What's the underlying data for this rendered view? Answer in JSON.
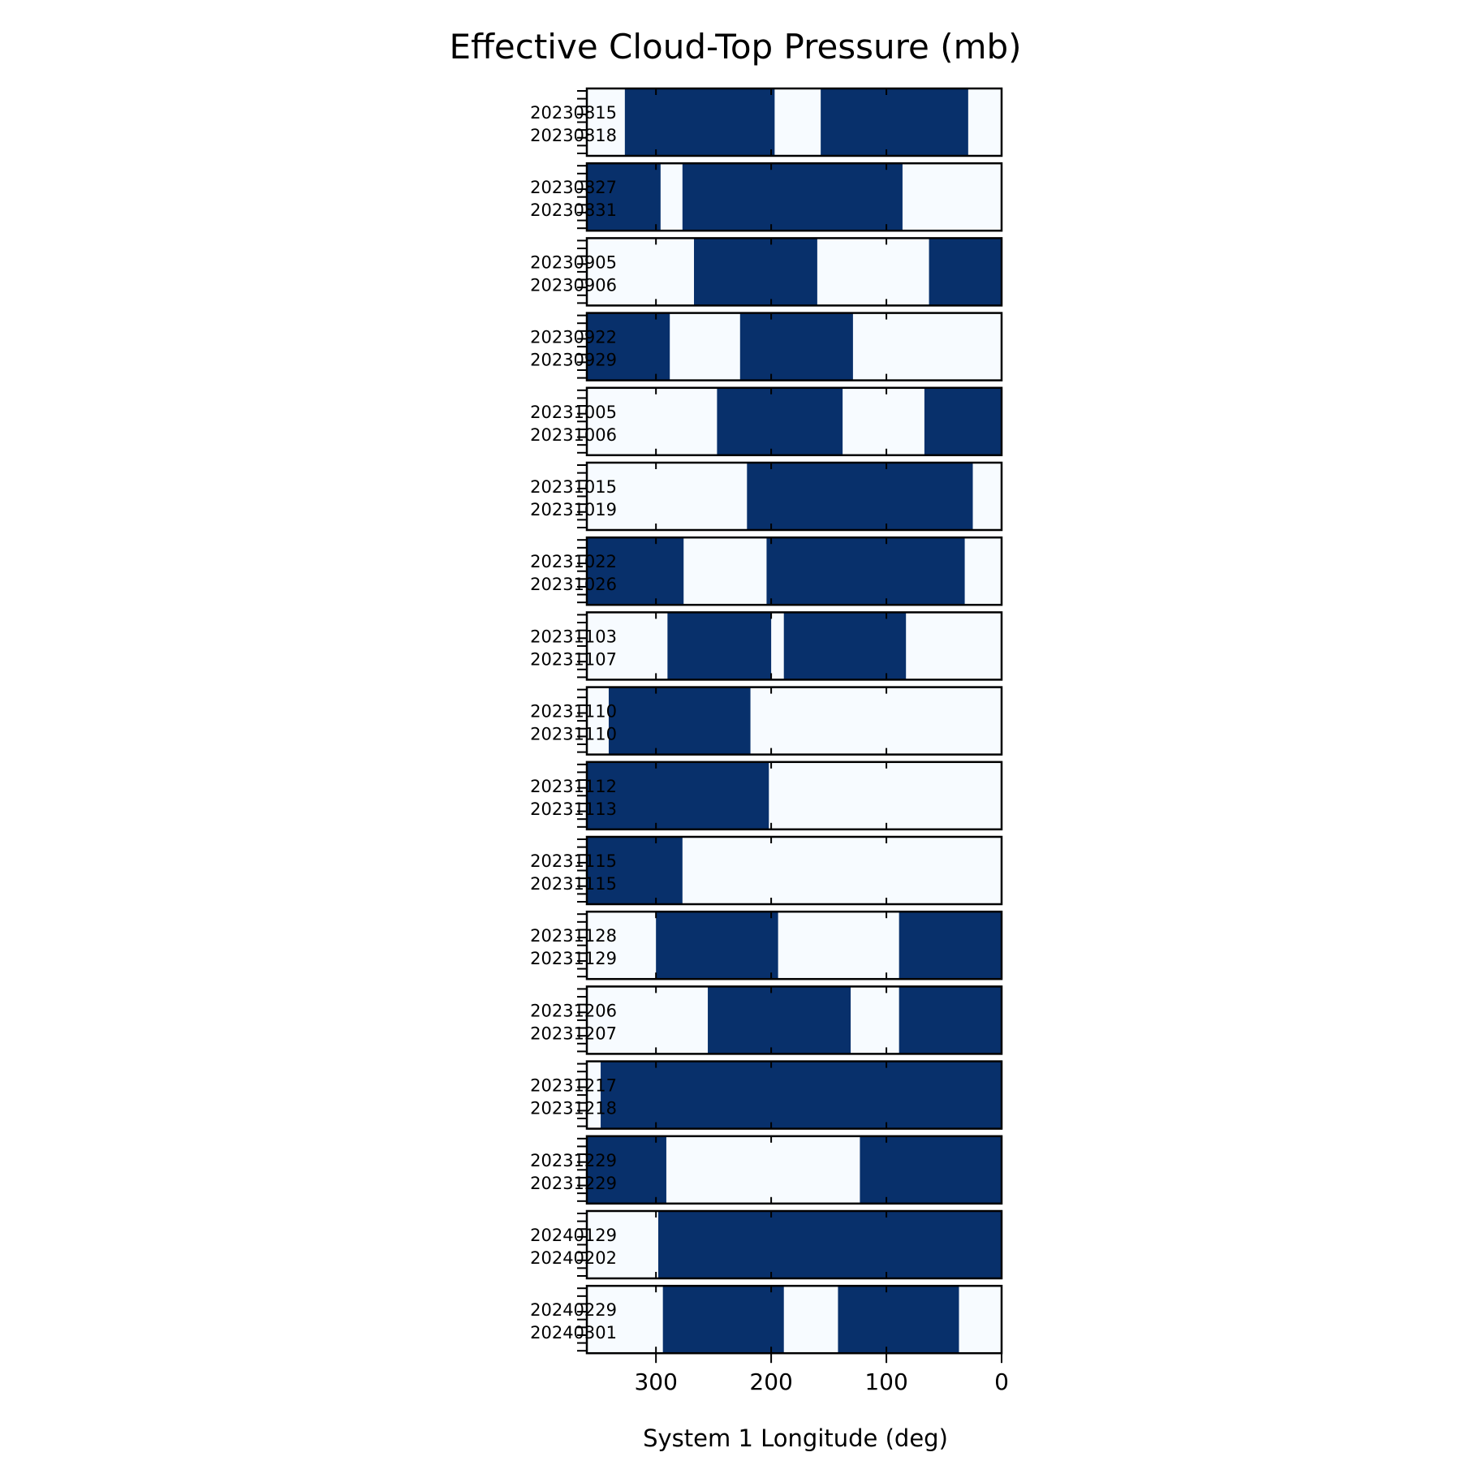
{
  "chart_data": {
    "type": "heatmap",
    "title": "Effective Cloud-Top Pressure (mb)",
    "xlabel": "System 1 Longitude (deg)",
    "ylabel": "",
    "xlim": [
      360,
      0
    ],
    "x_ticks": [
      300,
      200,
      100,
      0
    ],
    "colors": {
      "dark": "#08306b",
      "light": "#f7fbff"
    },
    "panels": [
      {
        "dates": [
          "20230815",
          "20230818"
        ],
        "dark_segments": [
          [
            327,
            197
          ],
          [
            157,
            29
          ]
        ]
      },
      {
        "dates": [
          "20230827",
          "20230831"
        ],
        "dark_segments": [
          [
            360,
            296
          ],
          [
            277,
            86
          ]
        ]
      },
      {
        "dates": [
          "20230905",
          "20230906"
        ],
        "dark_segments": [
          [
            267,
            160
          ],
          [
            63,
            0
          ]
        ]
      },
      {
        "dates": [
          "20230922",
          "20230929"
        ],
        "dark_segments": [
          [
            360,
            288
          ],
          [
            227,
            129
          ]
        ]
      },
      {
        "dates": [
          "20231005",
          "20231006"
        ],
        "dark_segments": [
          [
            247,
            138
          ],
          [
            67,
            0
          ]
        ]
      },
      {
        "dates": [
          "20231015",
          "20231019"
        ],
        "dark_segments": [
          [
            221,
            25
          ]
        ]
      },
      {
        "dates": [
          "20231022",
          "20231026"
        ],
        "dark_segments": [
          [
            360,
            276
          ],
          [
            204,
            32
          ]
        ]
      },
      {
        "dates": [
          "20231103",
          "20231107"
        ],
        "dark_segments": [
          [
            290,
            200
          ],
          [
            189,
            83
          ]
        ]
      },
      {
        "dates": [
          "20231110",
          "20231110"
        ],
        "dark_segments": [
          [
            341,
            218
          ]
        ]
      },
      {
        "dates": [
          "20231112",
          "20231113"
        ],
        "dark_segments": [
          [
            360,
            202
          ]
        ]
      },
      {
        "dates": [
          "20231115",
          "20231115"
        ],
        "dark_segments": [
          [
            360,
            277
          ]
        ]
      },
      {
        "dates": [
          "20231128",
          "20231129"
        ],
        "dark_segments": [
          [
            300,
            194
          ],
          [
            89,
            0
          ]
        ]
      },
      {
        "dates": [
          "20231206",
          "20231207"
        ],
        "dark_segments": [
          [
            255,
            131
          ],
          [
            89,
            0
          ]
        ]
      },
      {
        "dates": [
          "20231217",
          "20231218"
        ],
        "dark_segments": [
          [
            348,
            0
          ]
        ]
      },
      {
        "dates": [
          "20231229",
          "20231229"
        ],
        "dark_segments": [
          [
            360,
            291
          ],
          [
            123,
            0
          ]
        ]
      },
      {
        "dates": [
          "20240129",
          "20240202"
        ],
        "dark_segments": [
          [
            298,
            0
          ]
        ]
      },
      {
        "dates": [
          "20240229",
          "20240301"
        ],
        "dark_segments": [
          [
            294,
            189
          ],
          [
            142,
            37
          ]
        ]
      }
    ]
  }
}
